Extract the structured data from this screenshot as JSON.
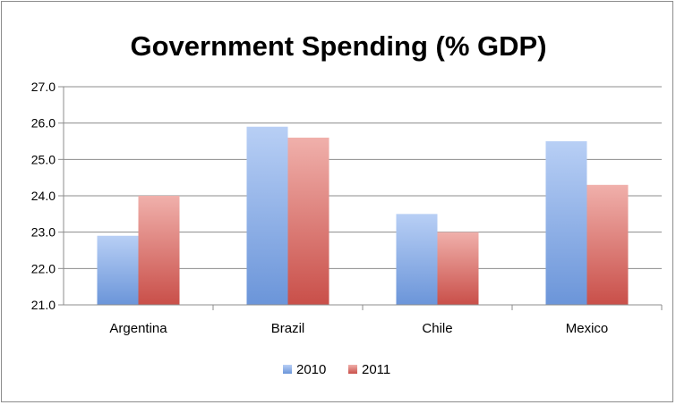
{
  "chart_data": {
    "type": "bar",
    "title": "Government Spending (% GDP)",
    "categories": [
      "Argentina",
      "Brazil",
      "Chile",
      "Mexico"
    ],
    "series": [
      {
        "name": "2010",
        "values": [
          22.9,
          25.9,
          23.5,
          25.5
        ],
        "color": "#7ea6e0"
      },
      {
        "name": "2011",
        "values": [
          24.0,
          25.6,
          23.0,
          24.3
        ],
        "color": "#d9706b"
      }
    ],
    "ylim": [
      21.0,
      27.0
    ],
    "yticks": [
      "21.0",
      "22.0",
      "23.0",
      "24.0",
      "25.0",
      "26.0",
      "27.0"
    ],
    "grid": true,
    "legend": "bottom",
    "xlabel": "",
    "ylabel": ""
  }
}
